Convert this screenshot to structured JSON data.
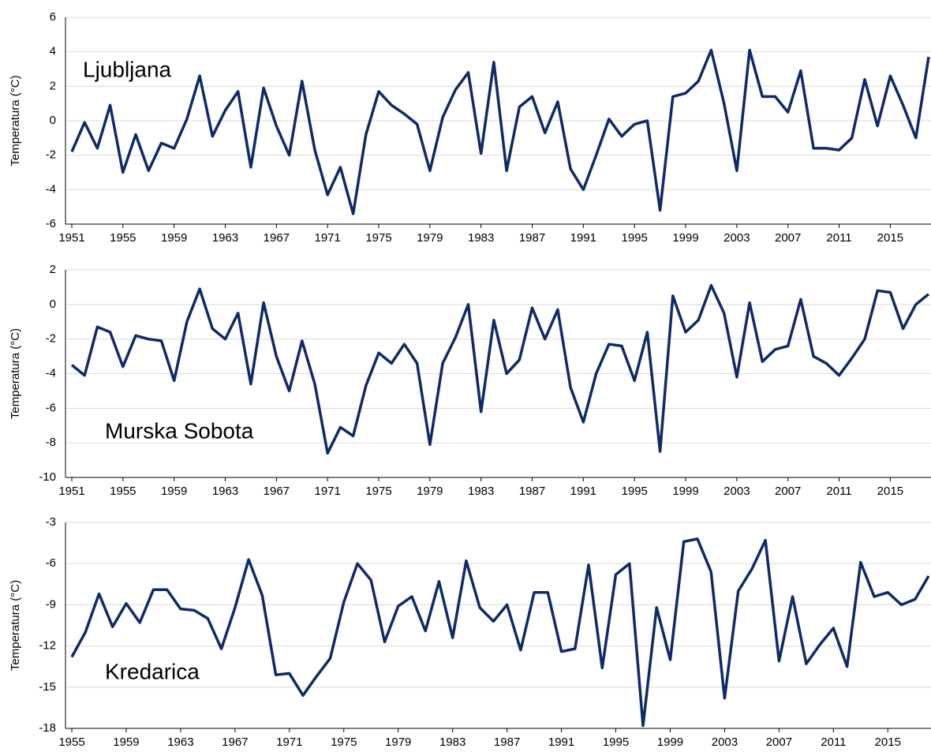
{
  "chart_data": [
    {
      "type": "line",
      "annotation": "Ljubljana",
      "ylabel": "Temperatura (°C)",
      "x": [
        1951,
        1952,
        1953,
        1954,
        1955,
        1956,
        1957,
        1958,
        1959,
        1960,
        1961,
        1962,
        1963,
        1964,
        1965,
        1966,
        1967,
        1968,
        1969,
        1970,
        1971,
        1972,
        1973,
        1974,
        1975,
        1976,
        1977,
        1978,
        1979,
        1980,
        1981,
        1982,
        1983,
        1984,
        1985,
        1986,
        1987,
        1988,
        1989,
        1990,
        1991,
        1992,
        1993,
        1994,
        1995,
        1996,
        1997,
        1998,
        1999,
        2000,
        2001,
        2002,
        2003,
        2004,
        2005,
        2006,
        2007,
        2008,
        2009,
        2010,
        2011,
        2012,
        2013,
        2014,
        2015,
        2016,
        2017,
        2018
      ],
      "series": [
        {
          "name": "Ljubljana",
          "color": "#0e2a68",
          "values": [
            -1.8,
            -0.1,
            -1.6,
            0.9,
            -3.0,
            -0.8,
            -2.9,
            -1.3,
            -1.6,
            0.1,
            2.6,
            -0.9,
            0.6,
            1.7,
            -2.7,
            1.9,
            -0.3,
            -2.0,
            2.3,
            -1.7,
            -4.3,
            -2.7,
            -5.4,
            -0.8,
            1.7,
            0.9,
            0.4,
            -0.2,
            -2.9,
            0.2,
            1.8,
            2.8,
            -1.9,
            3.4,
            -2.9,
            0.8,
            1.4,
            -0.7,
            1.1,
            -2.8,
            -4.0,
            -2.0,
            0.1,
            -0.9,
            -0.2,
            0.0,
            -5.2,
            1.4,
            1.6,
            2.3,
            4.1,
            1.0,
            -2.9,
            4.1,
            1.4,
            1.4,
            0.5,
            2.9,
            -1.6,
            -1.6,
            -1.7,
            -1.0,
            2.4,
            -0.3,
            2.6,
            0.9,
            -1.0,
            3.7
          ]
        }
      ],
      "xlim": [
        1951,
        2018
      ],
      "xticks": [
        1951,
        1955,
        1959,
        1963,
        1967,
        1971,
        1975,
        1979,
        1983,
        1987,
        1991,
        1995,
        1999,
        2003,
        2007,
        2011,
        2015
      ],
      "ylim": [
        -6,
        6
      ],
      "yticks": [
        -6,
        -4,
        -2,
        0,
        2,
        4,
        6
      ],
      "grid": true
    },
    {
      "type": "line",
      "annotation": "Murska Sobota",
      "ylabel": "Temperatura (°C)",
      "x": [
        1951,
        1952,
        1953,
        1954,
        1955,
        1956,
        1957,
        1958,
        1959,
        1960,
        1961,
        1962,
        1963,
        1964,
        1965,
        1966,
        1967,
        1968,
        1969,
        1970,
        1971,
        1972,
        1973,
        1974,
        1975,
        1976,
        1977,
        1978,
        1979,
        1980,
        1981,
        1982,
        1983,
        1984,
        1985,
        1986,
        1987,
        1988,
        1989,
        1990,
        1991,
        1992,
        1993,
        1994,
        1995,
        1996,
        1997,
        1998,
        1999,
        2000,
        2001,
        2002,
        2003,
        2004,
        2005,
        2006,
        2007,
        2008,
        2009,
        2010,
        2011,
        2012,
        2013,
        2014,
        2015,
        2016,
        2017,
        2018
      ],
      "series": [
        {
          "name": "Murska Sobota",
          "color": "#0e2a68",
          "values": [
            -3.5,
            -4.1,
            -1.3,
            -1.6,
            -3.6,
            -1.8,
            -2.0,
            -2.1,
            -4.4,
            -1.0,
            0.9,
            -1.4,
            -2.0,
            -0.5,
            -4.6,
            0.1,
            -3.0,
            -5.0,
            -2.1,
            -4.6,
            -8.6,
            -7.1,
            -7.6,
            -4.7,
            -2.8,
            -3.4,
            -2.3,
            -3.4,
            -8.1,
            -3.4,
            -1.9,
            0.0,
            -6.2,
            -0.9,
            -4.0,
            -3.2,
            -0.2,
            -2.0,
            -0.3,
            -4.8,
            -6.8,
            -4.0,
            -2.3,
            -2.4,
            -4.4,
            -1.6,
            -8.5,
            0.5,
            -1.6,
            -0.9,
            1.1,
            -0.5,
            -4.2,
            0.1,
            -3.3,
            -2.6,
            -2.4,
            0.3,
            -3.0,
            -3.4,
            -4.1,
            -3.1,
            -2.0,
            0.8,
            0.7,
            -1.4,
            0.0,
            0.6
          ]
        }
      ],
      "xlim": [
        1951,
        2018
      ],
      "xticks": [
        1951,
        1955,
        1959,
        1963,
        1967,
        1971,
        1975,
        1979,
        1983,
        1987,
        1991,
        1995,
        1999,
        2003,
        2007,
        2011,
        2015
      ],
      "ylim": [
        -10,
        2
      ],
      "yticks": [
        -10,
        -8,
        -6,
        -4,
        -2,
        0,
        2
      ],
      "grid": true
    },
    {
      "type": "line",
      "annotation": "Kredarica",
      "ylabel": "Temperatura (°C)",
      "x": [
        1955,
        1956,
        1957,
        1958,
        1959,
        1960,
        1961,
        1962,
        1963,
        1964,
        1965,
        1966,
        1967,
        1968,
        1969,
        1970,
        1971,
        1972,
        1973,
        1974,
        1975,
        1976,
        1977,
        1978,
        1979,
        1980,
        1981,
        1982,
        1983,
        1984,
        1985,
        1986,
        1987,
        1988,
        1989,
        1990,
        1991,
        1992,
        1993,
        1994,
        1995,
        1996,
        1997,
        1998,
        1999,
        2000,
        2001,
        2002,
        2003,
        2004,
        2005,
        2006,
        2007,
        2008,
        2009,
        2010,
        2011,
        2012,
        2013,
        2014,
        2015,
        2016,
        2017,
        2018
      ],
      "series": [
        {
          "name": "Kredarica",
          "color": "#0e2a68",
          "values": [
            -12.8,
            -11.0,
            -8.2,
            -10.6,
            -8.9,
            -10.3,
            -7.9,
            -7.9,
            -9.3,
            -9.4,
            -10.0,
            -12.2,
            -9.2,
            -5.7,
            -8.3,
            -14.1,
            -14.0,
            -15.6,
            -14.2,
            -12.9,
            -8.8,
            -6.0,
            -7.2,
            -11.7,
            -9.1,
            -8.4,
            -10.9,
            -7.3,
            -11.4,
            -5.8,
            -9.2,
            -10.2,
            -9.0,
            -12.3,
            -8.1,
            -8.1,
            -12.4,
            -12.2,
            -6.1,
            -13.6,
            -6.8,
            -6.0,
            -17.8,
            -9.2,
            -13.0,
            -4.4,
            -4.2,
            -6.6,
            -15.8,
            -8.0,
            -6.4,
            -4.3,
            -13.1,
            -8.4,
            -13.3,
            -11.9,
            -10.7,
            -13.5,
            -5.9,
            -8.4,
            -8.1,
            -9.0,
            -8.6,
            -6.9
          ]
        }
      ],
      "xlim": [
        1955,
        2018
      ],
      "xticks": [
        1955,
        1959,
        1963,
        1967,
        1971,
        1975,
        1979,
        1983,
        1987,
        1991,
        1995,
        1999,
        2003,
        2007,
        2011,
        2015
      ],
      "ylim": [
        -18,
        -3
      ],
      "yticks": [
        -18,
        -15,
        -12,
        -9,
        -6,
        -3
      ],
      "grid": true
    }
  ]
}
